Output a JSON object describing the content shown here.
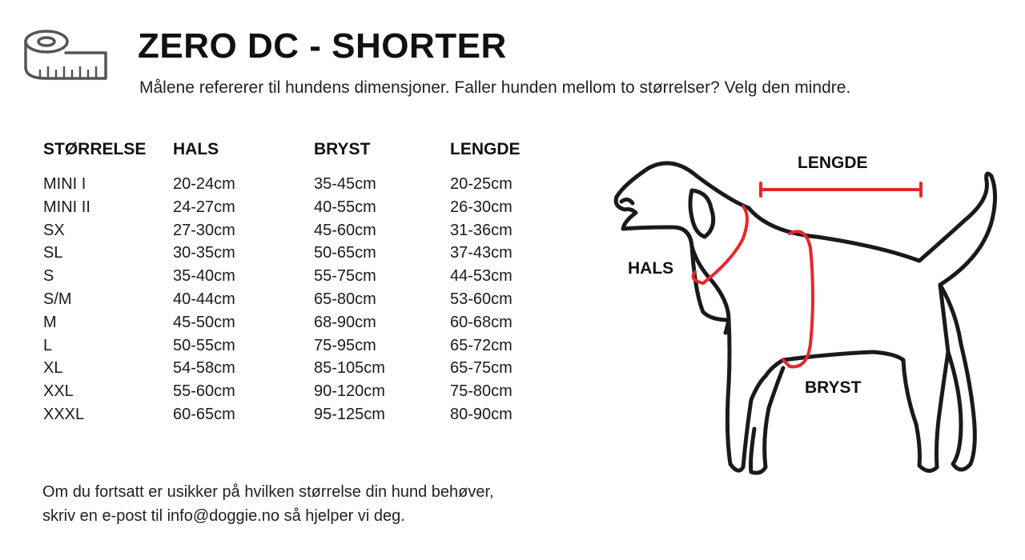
{
  "header": {
    "icon": "measuring-tape-icon",
    "title": "ZERO DC - SHORTER",
    "subtitle": "Målene refererer til hundens dimensjoner. Faller hunden mellom to størrelser? Velg den mindre."
  },
  "size_table": {
    "headers": [
      "STØRRELSE",
      "HALS",
      "BRYST",
      "LENGDE"
    ],
    "rows": [
      [
        "MINI I",
        "20-24cm",
        "35-45cm",
        "20-25cm"
      ],
      [
        "MINI II",
        "24-27cm",
        "40-55cm",
        "26-30cm"
      ],
      [
        "SX",
        "27-30cm",
        "45-60cm",
        "31-36cm"
      ],
      [
        "SL",
        "30-35cm",
        "50-65cm",
        "37-43cm"
      ],
      [
        "S",
        "35-40cm",
        "55-75cm",
        "44-53cm"
      ],
      [
        "S/M",
        "40-44cm",
        "65-80cm",
        "53-60cm"
      ],
      [
        "M",
        "45-50cm",
        "68-90cm",
        "60-68cm"
      ],
      [
        "L",
        "50-55cm",
        "75-95cm",
        "65-72cm"
      ],
      [
        "XL",
        "54-58cm",
        "85-105cm",
        "65-75cm"
      ],
      [
        "XXL",
        "55-60cm",
        "90-120cm",
        "75-80cm"
      ],
      [
        "XXXL",
        "60-65cm",
        "95-125cm",
        "80-90cm"
      ]
    ]
  },
  "diagram": {
    "labels": {
      "length": "LENGDE",
      "neck": "HALS",
      "chest": "BRYST"
    },
    "outline_color": "#1a1a1a",
    "measure_color": "#e8262b"
  },
  "footer": {
    "line1": "Om du fortsatt er usikker på hvilken størrelse din hund behøver,",
    "line2": "skriv en e-post til info@doggie.no så hjelper vi deg."
  }
}
